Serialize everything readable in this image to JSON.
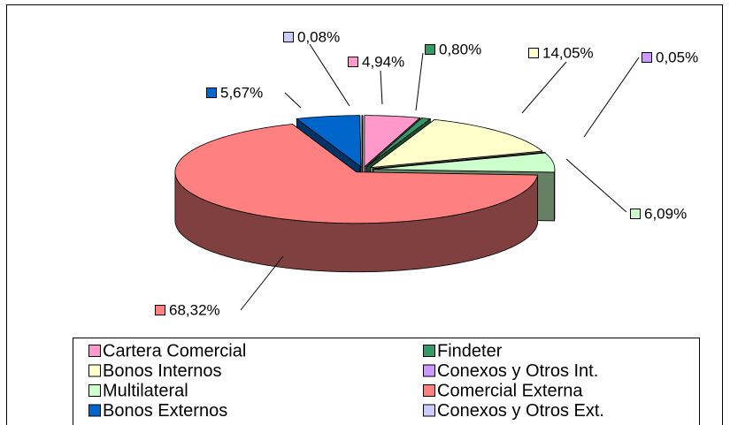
{
  "chart_data": {
    "type": "pie3d",
    "categories": [
      "Cartera Comercial",
      "Findeter",
      "Bonos Internos",
      "Conexos y Otros Int.",
      "Multilateral",
      "Comercial Externa",
      "Bonos Externos",
      "Conexos y Otros Ext."
    ],
    "values": [
      4.94,
      0.8,
      14.05,
      0.05,
      6.09,
      68.32,
      5.67,
      0.08
    ],
    "value_labels": [
      "4,94%",
      "0,80%",
      "14,05%",
      "0,05%",
      "6,09%",
      "68,32%",
      "5,67%",
      "0,08%"
    ],
    "colors": [
      "#ff99cc",
      "#339966",
      "#ffffcc",
      "#cc99ff",
      "#ccffcc",
      "#ff8080",
      "#0066cc",
      "#ccccff"
    ]
  }
}
